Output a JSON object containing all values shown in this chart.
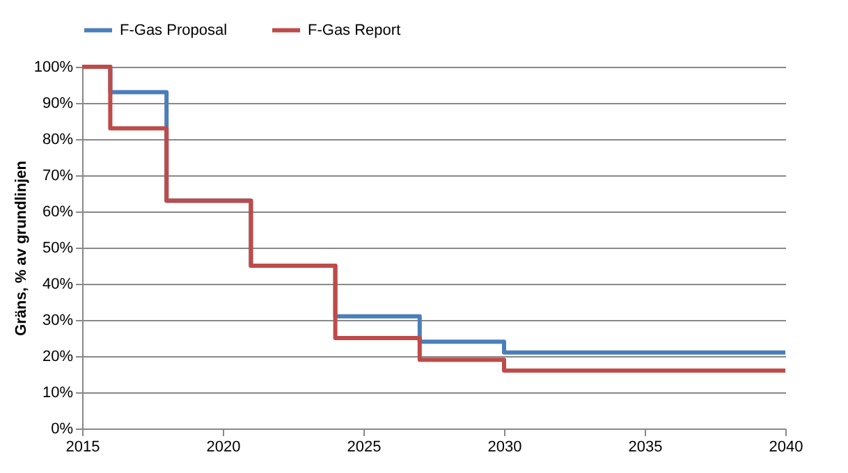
{
  "chart_data": {
    "type": "step",
    "ylabel": "Gräns, % av grundlinjen",
    "x": [
      2015,
      2016,
      2018,
      2021,
      2024,
      2027,
      2030,
      2040
    ],
    "series": [
      {
        "name": "F-Gas Proposal",
        "color": "#4a7ebb",
        "values": [
          100,
          93,
          63,
          45,
          31,
          24,
          21,
          21
        ]
      },
      {
        "name": "F-Gas Report",
        "color": "#be4b48",
        "values": [
          100,
          83,
          63,
          45,
          25,
          19,
          16,
          16
        ]
      }
    ],
    "xlim": [
      2015,
      2040
    ],
    "xticks": [
      2015,
      2020,
      2025,
      2030,
      2035,
      2040
    ],
    "ylim": [
      0,
      100
    ],
    "yticks": [
      {
        "value": 0,
        "label": "0%"
      },
      {
        "value": 10,
        "label": "10%"
      },
      {
        "value": 20,
        "label": "20%"
      },
      {
        "value": 30,
        "label": "30%"
      },
      {
        "value": 40,
        "label": "40%"
      },
      {
        "value": 50,
        "label": "50%"
      },
      {
        "value": 60,
        "label": "60%"
      },
      {
        "value": 70,
        "label": "70%"
      },
      {
        "value": 80,
        "label": "80%"
      },
      {
        "value": 90,
        "label": "90%"
      },
      {
        "value": 100,
        "label": "100%"
      }
    ],
    "grid": "y",
    "legend": "top",
    "line_style": "solid",
    "marker": "none"
  }
}
